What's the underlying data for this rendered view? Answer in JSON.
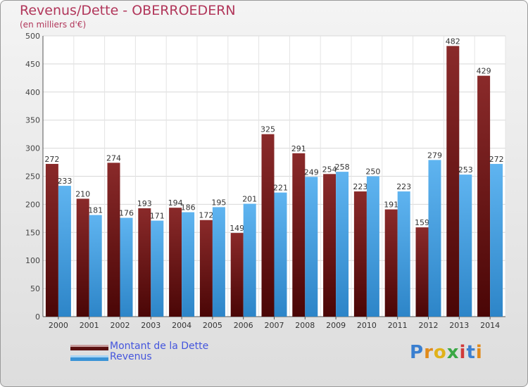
{
  "chart_data": {
    "type": "bar",
    "title": "Revenus/Dette - OBERROEDERN",
    "subtitle": "(en milliers d'€)",
    "categories": [
      "2000",
      "2001",
      "2002",
      "2003",
      "2004",
      "2005",
      "2006",
      "2007",
      "2008",
      "2009",
      "2010",
      "2011",
      "2012",
      "2013",
      "2014"
    ],
    "series": [
      {
        "name": "Montant de la Dette",
        "values": [
          272,
          210,
          274,
          193,
          194,
          172,
          149,
          325,
          291,
          254,
          223,
          191,
          159,
          482,
          429
        ],
        "color": "#7b1a1a"
      },
      {
        "name": "Revenus",
        "values": [
          233,
          181,
          176,
          171,
          186,
          195,
          201,
          221,
          249,
          258,
          250,
          223,
          279,
          253,
          272
        ],
        "color": "#4aa3e6"
      }
    ],
    "ylim": [
      0,
      500
    ],
    "yticks": [
      0,
      50,
      100,
      150,
      200,
      250,
      300,
      350,
      400,
      450,
      500
    ],
    "grid": true,
    "legend": "bottom-left"
  },
  "logo": {
    "letters": [
      "P",
      "r",
      "o",
      "x",
      "i",
      "t",
      "i"
    ],
    "colors": [
      "#3a7fd0",
      "#e08a1a",
      "#e0b21a",
      "#3aa845",
      "#d03a3a",
      "#3a7fd0",
      "#e08a1a"
    ]
  }
}
